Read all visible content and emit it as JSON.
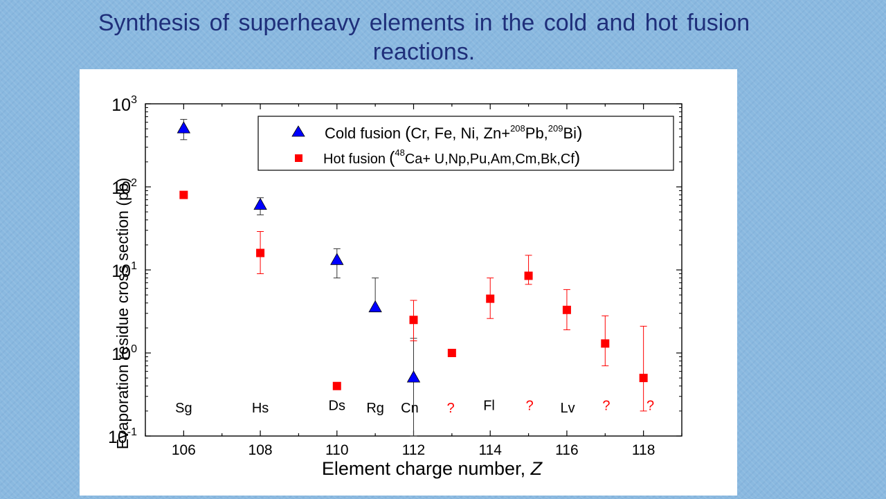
{
  "slide": {
    "title_line1": "Synthesis of superheavy elements in the cold and hot fusion",
    "title_line2": "reactions."
  },
  "chart_data": {
    "type": "scatter",
    "xlabel_main": "Element charge number, ",
    "xlabel_var": "Z",
    "ylabel": "Evaporation residue cross section (pb)",
    "xlim": [
      105,
      119
    ],
    "ylim": [
      0.1,
      1000
    ],
    "yscale": "log",
    "xticks": [
      106,
      108,
      110,
      112,
      114,
      116,
      118
    ],
    "yticks": [
      {
        "value": 1000,
        "base": "10",
        "exp": "3"
      },
      {
        "value": 100,
        "base": "10",
        "exp": "2"
      },
      {
        "value": 10,
        "base": "10",
        "exp": "1"
      },
      {
        "value": 1,
        "base": "10",
        "exp": "0"
      },
      {
        "value": 0.1,
        "base": "10",
        "exp": "-1"
      }
    ],
    "legend": {
      "position": "top-right",
      "cold": {
        "label": "Cold fusion",
        "paren_open": "(",
        "text1": "Cr, Fe, Ni, Zn+",
        "sup1": "208",
        "text2": "Pb,",
        "sup2": "209",
        "text3": "Bi",
        "paren_close": ")"
      },
      "hot": {
        "label": "Hot fusion",
        "paren_open": "(",
        "sup1": "48",
        "text1": "Ca+ U,Np,Pu,Am,Cm,Bk,Cf",
        "paren_close": ")"
      }
    },
    "series": [
      {
        "name": "Cold fusion",
        "marker": "triangle",
        "color": "#0000ff",
        "points": [
          {
            "x": 106,
            "y": 500,
            "lo": 370,
            "hi": 650
          },
          {
            "x": 108,
            "y": 60,
            "lo": 46,
            "hi": 74
          },
          {
            "x": 110,
            "y": 13,
            "lo": 8,
            "hi": 18
          },
          {
            "x": 111,
            "y": 3.5,
            "lo": 3.5,
            "hi": 8
          },
          {
            "x": 112,
            "y": 0.5,
            "lo": 0.1,
            "hi": 1.5
          }
        ]
      },
      {
        "name": "Hot fusion",
        "marker": "square",
        "color": "#ff0000",
        "points": [
          {
            "x": 106,
            "y": 80
          },
          {
            "x": 108,
            "y": 16,
            "lo": 9,
            "hi": 29
          },
          {
            "x": 110,
            "y": 0.4
          },
          {
            "x": 112,
            "y": 2.5,
            "lo": 1.4,
            "hi": 4.3
          },
          {
            "x": 113,
            "y": 1.0
          },
          {
            "x": 114,
            "y": 4.5,
            "lo": 2.6,
            "hi": 8
          },
          {
            "x": 115,
            "y": 8.5,
            "lo": 6.7,
            "hi": 15
          },
          {
            "x": 116,
            "y": 3.3,
            "lo": 1.9,
            "hi": 5.8
          },
          {
            "x": 117,
            "y": 1.3,
            "lo": 0.7,
            "hi": 2.8
          },
          {
            "x": 118,
            "y": 0.5,
            "lo": 0.2,
            "hi": 2.1
          }
        ]
      }
    ],
    "element_labels": [
      {
        "x": 106,
        "y": 0.22,
        "text": "Sg",
        "color": "#000000"
      },
      {
        "x": 108,
        "y": 0.22,
        "text": "Hs",
        "color": "#000000"
      },
      {
        "x": 110,
        "y": 0.235,
        "text": "Ds",
        "color": "#000000"
      },
      {
        "x": 111,
        "y": 0.22,
        "text": "Rg",
        "color": "#000000"
      },
      {
        "x": 111.9,
        "y": 0.22,
        "text": "Cn",
        "color": "#000000"
      },
      {
        "x": 112.97,
        "y": 0.22,
        "text": "?",
        "color": "#ff0000"
      },
      {
        "x": 113.97,
        "y": 0.235,
        "text": "Fl",
        "color": "#000000"
      },
      {
        "x": 115.03,
        "y": 0.235,
        "text": "?",
        "color": "#ff0000"
      },
      {
        "x": 116.02,
        "y": 0.22,
        "text": "Lv",
        "color": "#000000"
      },
      {
        "x": 117.03,
        "y": 0.235,
        "text": "?",
        "color": "#ff0000"
      },
      {
        "x": 118.18,
        "y": 0.235,
        "text": "?",
        "color": "#ff0000"
      }
    ]
  }
}
